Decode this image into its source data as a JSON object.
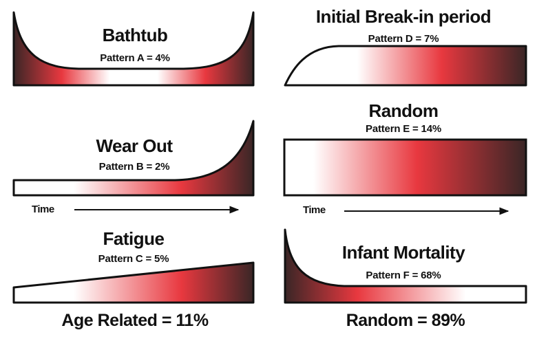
{
  "colors": {
    "red": "#e8383f",
    "dark": "#3a2626",
    "white": "#ffffff",
    "outline": "#111111"
  },
  "patterns": {
    "a": {
      "title": "Bathtub",
      "label": "Pattern A = 4%",
      "percent": 4
    },
    "b": {
      "title": "Wear Out",
      "label": "Pattern B = 2%",
      "percent": 2
    },
    "c": {
      "title": "Fatigue",
      "label": "Pattern C = 5%",
      "percent": 5
    },
    "d": {
      "title": "Initial Break-in period",
      "label": "Pattern D = 7%",
      "percent": 7
    },
    "e": {
      "title": "Random",
      "label": "Pattern E = 14%",
      "percent": 14
    },
    "f": {
      "title": "Infant Mortality",
      "label": "Pattern F = 68%",
      "percent": 68
    }
  },
  "time_axis": {
    "left": "Time",
    "right": "Time"
  },
  "totals": {
    "age_related": "Age Related = 11%",
    "random": "Random = 89%"
  }
}
